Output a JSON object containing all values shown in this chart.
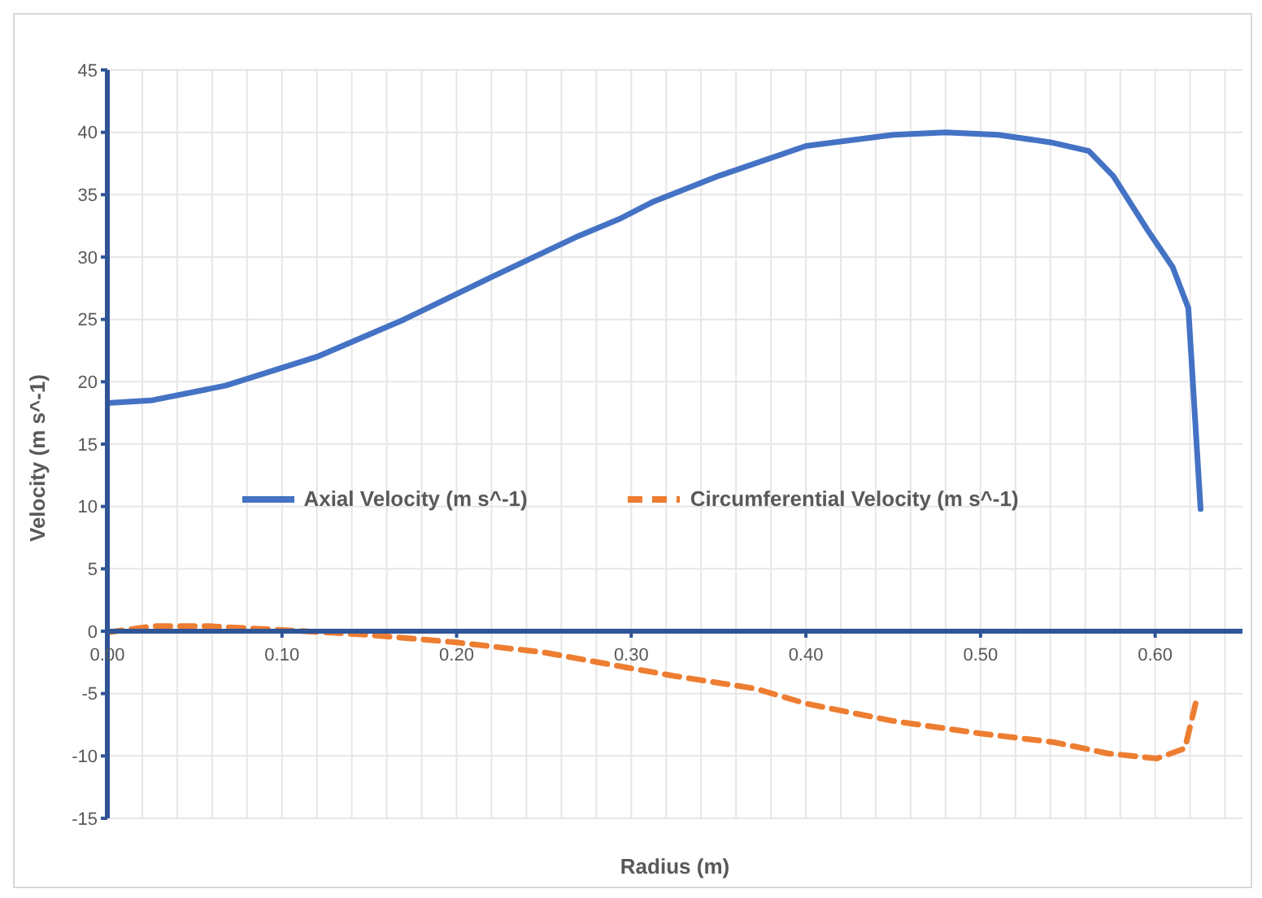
{
  "chart_data": {
    "type": "line",
    "xlabel": "Radius (m)",
    "ylabel": "Velocity (m s^-1)",
    "xlim": [
      0,
      0.65
    ],
    "ylim": [
      -15,
      45
    ],
    "xticks": [
      {
        "value": 0,
        "label": "0.00"
      },
      {
        "value": 0.02,
        "label": null
      },
      {
        "value": 0.04,
        "label": null
      },
      {
        "value": 0.06,
        "label": null
      },
      {
        "value": 0.08,
        "label": null
      },
      {
        "value": 0.1,
        "label": "0.10"
      },
      {
        "value": 0.12,
        "label": null
      },
      {
        "value": 0.14,
        "label": null
      },
      {
        "value": 0.16,
        "label": null
      },
      {
        "value": 0.18,
        "label": null
      },
      {
        "value": 0.2,
        "label": "0.20"
      },
      {
        "value": 0.22,
        "label": null
      },
      {
        "value": 0.24,
        "label": null
      },
      {
        "value": 0.26,
        "label": null
      },
      {
        "value": 0.28,
        "label": null
      },
      {
        "value": 0.3,
        "label": "0.30"
      },
      {
        "value": 0.32,
        "label": null
      },
      {
        "value": 0.34,
        "label": null
      },
      {
        "value": 0.36,
        "label": null
      },
      {
        "value": 0.38,
        "label": null
      },
      {
        "value": 0.4,
        "label": "0.40"
      },
      {
        "value": 0.42,
        "label": null
      },
      {
        "value": 0.44,
        "label": null
      },
      {
        "value": 0.46,
        "label": null
      },
      {
        "value": 0.48,
        "label": null
      },
      {
        "value": 0.5,
        "label": "0.50"
      },
      {
        "value": 0.52,
        "label": null
      },
      {
        "value": 0.54,
        "label": null
      },
      {
        "value": 0.56,
        "label": null
      },
      {
        "value": 0.58,
        "label": null
      },
      {
        "value": 0.6,
        "label": "0.60"
      },
      {
        "value": 0.62,
        "label": null
      },
      {
        "value": 0.64,
        "label": null
      }
    ],
    "yticks": [
      -15,
      -10,
      -5,
      0,
      5,
      10,
      15,
      20,
      25,
      30,
      35,
      40,
      45
    ],
    "grid": true,
    "legend": "center",
    "marker": "none",
    "series": [
      {
        "name": "Axial Velocity (m s^-1)",
        "color": "#4472c4",
        "line_style": "solid",
        "x": [
          0,
          0.025,
          0.068,
          0.12,
          0.17,
          0.22,
          0.27,
          0.294,
          0.312,
          0.35,
          0.4,
          0.45,
          0.48,
          0.51,
          0.54,
          0.562,
          0.576,
          0.595,
          0.61,
          0.619,
          0.626
        ],
        "values": [
          18.3,
          18.5,
          19.7,
          22.0,
          25.0,
          28.4,
          31.7,
          33.1,
          34.4,
          36.5,
          38.9,
          39.8,
          40.0,
          39.8,
          39.2,
          38.5,
          36.5,
          32.3,
          29.2,
          25.9,
          9.8
        ]
      },
      {
        "name": "Circumferential Velocity (m s^-1)",
        "color": "#ed7d31",
        "line_style": "dashed",
        "x": [
          0,
          0.026,
          0.058,
          0.1,
          0.15,
          0.2,
          0.25,
          0.297,
          0.325,
          0.371,
          0.4,
          0.45,
          0.5,
          0.542,
          0.573,
          0.601,
          0.617,
          0.624
        ],
        "values": [
          -0.1,
          0.4,
          0.4,
          0.1,
          -0.3,
          -0.9,
          -1.7,
          -2.9,
          -3.6,
          -4.6,
          -5.8,
          -7.2,
          -8.2,
          -8.9,
          -9.8,
          -10.2,
          -9.4,
          -5.3
        ]
      }
    ]
  }
}
